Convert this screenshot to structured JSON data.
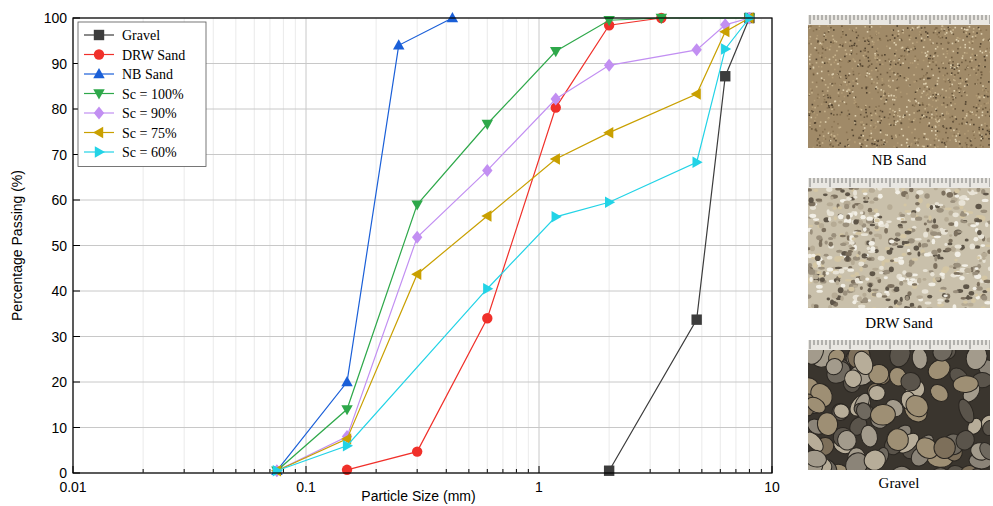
{
  "chart_data": {
    "type": "line",
    "log": "x",
    "grid": true,
    "legend": "top-left",
    "x_label": "Particle Size (mm)",
    "y_label": "Percentage Passing (%)",
    "xlim": [
      0.01,
      10
    ],
    "ylim": [
      0,
      100
    ],
    "xticks": [
      0.01,
      0.1,
      1,
      10
    ],
    "yticks": [
      0,
      10,
      20,
      30,
      40,
      50,
      60,
      70,
      80,
      90,
      100
    ],
    "series": [
      {
        "name": "Gravel",
        "color": "#3c3c3c",
        "marker": "square",
        "line_style": "solid",
        "x": [
          2,
          4.75,
          6.3,
          8
        ],
        "values": [
          0.5,
          33.7,
          87.2,
          100
        ]
      },
      {
        "name": "DRW Sand",
        "color": "#f0302a",
        "marker": "circle",
        "line_style": "solid",
        "x": [
          0.15,
          0.3,
          0.6,
          1.18,
          2,
          3.35
        ],
        "values": [
          0.7,
          4.7,
          34,
          80.3,
          98.4,
          100
        ]
      },
      {
        "name": "NB Sand",
        "color": "#1a5fd8",
        "marker": "triangle-up",
        "line_style": "solid",
        "x": [
          0.075,
          0.15,
          0.25,
          0.425
        ],
        "values": [
          0.5,
          20,
          94,
          100
        ]
      },
      {
        "name": "Sc = 100%",
        "color": "#2ea84a",
        "marker": "triangle-down",
        "line_style": "solid",
        "x": [
          0.075,
          0.15,
          0.3,
          0.6,
          1.18,
          2,
          3.35,
          8
        ],
        "values": [
          0.5,
          14,
          59,
          76.7,
          92.7,
          99.5,
          100,
          100
        ]
      },
      {
        "name": "Sc = 90%",
        "color": "#c28ff2",
        "marker": "diamond",
        "line_style": "solid",
        "x": [
          0.075,
          0.15,
          0.3,
          0.6,
          1.18,
          2,
          4.75,
          6.3,
          8
        ],
        "values": [
          0.5,
          8,
          51.8,
          66.5,
          82.2,
          89.6,
          93,
          98.5,
          100
        ]
      },
      {
        "name": "Sc = 75%",
        "color": "#c9a000",
        "marker": "triangle-left",
        "line_style": "solid",
        "x": [
          0.075,
          0.15,
          0.3,
          0.6,
          1.18,
          2,
          4.75,
          6.3,
          8
        ],
        "values": [
          0.5,
          7.5,
          43.7,
          56.5,
          69,
          74.8,
          83.3,
          97,
          100
        ]
      },
      {
        "name": "Sc = 60%",
        "color": "#22d3e6",
        "marker": "triangle-right",
        "line_style": "solid",
        "x": [
          0.075,
          0.15,
          0.6,
          1.18,
          2,
          4.75,
          6.3,
          8
        ],
        "values": [
          0.5,
          6,
          40.5,
          56.3,
          59.5,
          68.3,
          93.2,
          100
        ]
      }
    ]
  },
  "images": [
    {
      "caption": "NB Sand"
    },
    {
      "caption": "DRW Sand"
    },
    {
      "caption": "Gravel"
    }
  ]
}
